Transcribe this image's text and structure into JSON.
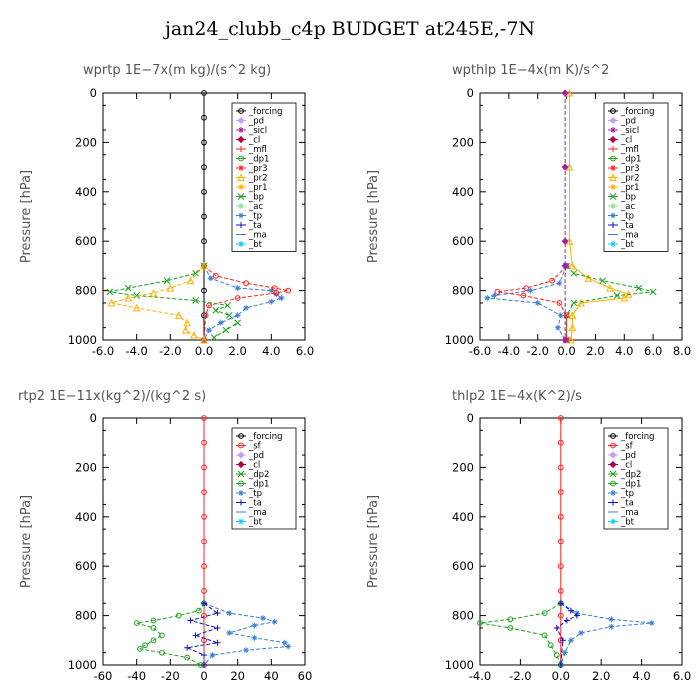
{
  "title": "jan24_clubb_c4p  BUDGET at245E,-7N",
  "chart_data": [
    {
      "type": "line",
      "title": "wprtp   1E−7x(m kg)/(s^2 kg)",
      "ylabel": "Pressure [hPa]",
      "xlim": [
        -6.0,
        6.0
      ],
      "xticks": [
        "-6.0",
        "-4.0",
        "-2.0",
        "0.0",
        "2.0",
        "4.0",
        "6.0"
      ],
      "ylim": [
        1000,
        0
      ],
      "yticks": [
        "0",
        "200",
        "400",
        "600",
        "800",
        "1000"
      ],
      "legend": [
        "_forcing",
        "_pd",
        "_sicl",
        "_cl",
        "_mfl",
        "_dp1",
        "_pr3",
        "_pr2",
        "_pr1",
        "_bp",
        "_ac",
        "_tp",
        "_ta",
        "_ma",
        "_bt"
      ],
      "series": [
        {
          "color": "#000000",
          "marker": "circle",
          "y": [
            0,
            100,
            200,
            300,
            400,
            500,
            600,
            700,
            800,
            900,
            1000
          ],
          "x": [
            0,
            0,
            0,
            0,
            0,
            0,
            0,
            0,
            0,
            0,
            0
          ]
        },
        {
          "color": "#3a7fd0",
          "marker": "star",
          "y": [
            700,
            750,
            790,
            800,
            815,
            830,
            845,
            870,
            900,
            930,
            960,
            1000
          ],
          "x": [
            0,
            0.4,
            2.0,
            4.0,
            4.3,
            4.6,
            4.0,
            2.5,
            2.0,
            1.0,
            0.3,
            0
          ]
        },
        {
          "color": "#ff2020",
          "marker": "circle",
          "y": [
            700,
            740,
            770,
            790,
            800,
            810,
            830,
            860,
            900,
            1000
          ],
          "x": [
            0,
            0.7,
            2.5,
            4.2,
            5.0,
            4.3,
            2.0,
            0.3,
            0.1,
            0
          ]
        },
        {
          "color": "#21a021",
          "marker": "x",
          "y": [
            700,
            730,
            760,
            790,
            805,
            820,
            840,
            860,
            880,
            900,
            930,
            960,
            990
          ],
          "x": [
            0,
            -0.5,
            -2.2,
            -4.5,
            -5.6,
            -4.0,
            -0.5,
            1.4,
            0.7,
            1.5,
            2.0,
            1.3,
            0.6
          ]
        },
        {
          "color": "#ffb000",
          "marker": "triangle",
          "y": [
            700,
            760,
            790,
            810,
            830,
            850,
            870,
            900,
            930,
            960,
            980,
            1000
          ],
          "x": [
            0,
            -0.8,
            -2.0,
            -3.0,
            -4.5,
            -5.5,
            -4.0,
            -1.5,
            -1.0,
            -1.1,
            -0.6,
            0
          ]
        }
      ]
    },
    {
      "type": "line",
      "title": "wpthlp   1E−4x(m K)/s^2",
      "ylabel": "Pressure [hPa]",
      "xlim": [
        -6.0,
        8.0
      ],
      "xticks": [
        "-6.0",
        "-4.0",
        "-2.0",
        "0.0",
        "2.0",
        "4.0",
        "6.0",
        "8.0"
      ],
      "ylim": [
        1000,
        0
      ],
      "yticks": [
        "0",
        "200",
        "400",
        "600",
        "800",
        "1000"
      ],
      "legend": [
        "_forcing",
        "_pd",
        "_sicl",
        "_cl",
        "_mfl",
        "_dp1",
        "_pr3",
        "_pr2",
        "_pr1",
        "_bp",
        "_ac",
        "_tp",
        "_ta",
        "_ma",
        "_bt"
      ],
      "series": [
        {
          "color": "#ffb000",
          "marker": "triangle",
          "y": [
            0,
            300,
            600,
            700,
            750,
            790,
            815,
            830,
            850,
            900,
            950,
            1000
          ],
          "x": [
            0.2,
            0.2,
            0.2,
            0.4,
            1.5,
            3.0,
            4.3,
            4.0,
            1.0,
            0.4,
            0.4,
            0.3
          ]
        },
        {
          "color": "#21a021",
          "marker": "x",
          "y": [
            700,
            730,
            760,
            790,
            805,
            820,
            850,
            900,
            1000
          ],
          "x": [
            0,
            0.5,
            2.5,
            5.0,
            6.0,
            3.5,
            0.5,
            0,
            0
          ]
        },
        {
          "color": "#ff2020",
          "marker": "circle",
          "y": [
            700,
            760,
            790,
            805,
            820,
            850,
            900,
            1000
          ],
          "x": [
            0,
            -1.0,
            -2.8,
            -4.8,
            -3.0,
            -0.5,
            0,
            0
          ]
        },
        {
          "color": "#3a7fd0",
          "marker": "star",
          "y": [
            700,
            770,
            800,
            820,
            830,
            850,
            900,
            950,
            1000
          ],
          "x": [
            0,
            -0.5,
            -2.5,
            -5.0,
            -5.5,
            -2.0,
            -0.4,
            -0.6,
            -0.1
          ]
        },
        {
          "color": "#a020a0",
          "marker": "diamond",
          "y": [
            0,
            300,
            600,
            700,
            1000
          ],
          "x": [
            -0.1,
            -0.1,
            -0.1,
            -0.1,
            -0.1
          ]
        }
      ]
    },
    {
      "type": "line",
      "title": "rtp2   1E−11x(kg^2)/(kg^2 s)",
      "ylabel": "Pressure [hPa]",
      "xlim": [
        -60,
        60
      ],
      "xticks": [
        "-60",
        "-40",
        "-20",
        "0",
        "20",
        "40",
        "60"
      ],
      "ylim": [
        1000,
        0
      ],
      "yticks": [
        "0",
        "200",
        "400",
        "600",
        "800",
        "1000"
      ],
      "legend": [
        "_forcing",
        "_sf",
        "_pd",
        "_cl",
        "_dp2",
        "_dp1",
        "_tp",
        "_ta",
        "_ma",
        "_bt"
      ],
      "series": [
        {
          "color": "#ff2020",
          "marker": "circle",
          "y": [
            0,
            100,
            200,
            300,
            400,
            500,
            600,
            700,
            800,
            900,
            1000
          ],
          "x": [
            0,
            0,
            0,
            0,
            0,
            0,
            0,
            0,
            0,
            0,
            0
          ]
        },
        {
          "color": "#3a7fd0",
          "marker": "star",
          "y": [
            750,
            790,
            810,
            825,
            840,
            870,
            890,
            910,
            925,
            940,
            960,
            1000
          ],
          "x": [
            0,
            15,
            35,
            42,
            30,
            15,
            30,
            48,
            50,
            25,
            5,
            0
          ]
        },
        {
          "color": "#21a021",
          "marker": "circle",
          "y": [
            750,
            780,
            800,
            820,
            830,
            850,
            880,
            900,
            920,
            935,
            950,
            970,
            1000
          ],
          "x": [
            0,
            -3,
            -15,
            -30,
            -40,
            -30,
            -25,
            -30,
            -35,
            -38,
            -25,
            -10,
            -2
          ]
        },
        {
          "color": "#1010c0",
          "marker": "plus",
          "y": [
            750,
            790,
            820,
            850,
            880,
            910,
            930,
            960,
            1000
          ],
          "x": [
            0,
            8,
            -8,
            8,
            -5,
            8,
            -10,
            0,
            0
          ]
        }
      ]
    },
    {
      "type": "line",
      "title": "thlp2   1E−4x(K^2)/s",
      "ylabel": "Pressure [hPa]",
      "xlim": [
        -4.0,
        6.0
      ],
      "xticks": [
        "-4.0",
        "-2.0",
        "0.0",
        "2.0",
        "4.0",
        "6.0"
      ],
      "ylim": [
        1000,
        0
      ],
      "yticks": [
        "0",
        "200",
        "400",
        "600",
        "800",
        "1000"
      ],
      "legend": [
        "_forcing",
        "_sf",
        "_pd",
        "_cl",
        "_dp2",
        "_dp1",
        "_tp",
        "_ta",
        "_ma",
        "_bt"
      ],
      "series": [
        {
          "color": "#ff2020",
          "marker": "circle",
          "y": [
            0,
            100,
            200,
            300,
            400,
            500,
            600,
            700,
            800,
            900,
            1000
          ],
          "x": [
            0,
            0,
            0,
            0,
            0,
            0,
            0,
            0,
            0,
            0,
            0
          ]
        },
        {
          "color": "#3a7fd0",
          "marker": "star",
          "y": [
            750,
            790,
            815,
            830,
            845,
            870,
            900,
            950,
            1000
          ],
          "x": [
            0,
            0.8,
            2.5,
            4.5,
            2.5,
            1.0,
            0.5,
            0.2,
            0
          ]
        },
        {
          "color": "#21a021",
          "marker": "circle",
          "y": [
            750,
            790,
            815,
            830,
            850,
            880,
            920,
            960,
            1000
          ],
          "x": [
            0,
            -0.8,
            -2.5,
            -4.0,
            -2.5,
            -0.8,
            -0.5,
            -0.2,
            0
          ]
        },
        {
          "color": "#1010c0",
          "marker": "plus",
          "y": [
            750,
            780,
            800,
            820,
            850,
            900,
            1000
          ],
          "x": [
            0,
            0.5,
            0.8,
            0.3,
            -0.2,
            0.1,
            0
          ]
        }
      ]
    }
  ]
}
